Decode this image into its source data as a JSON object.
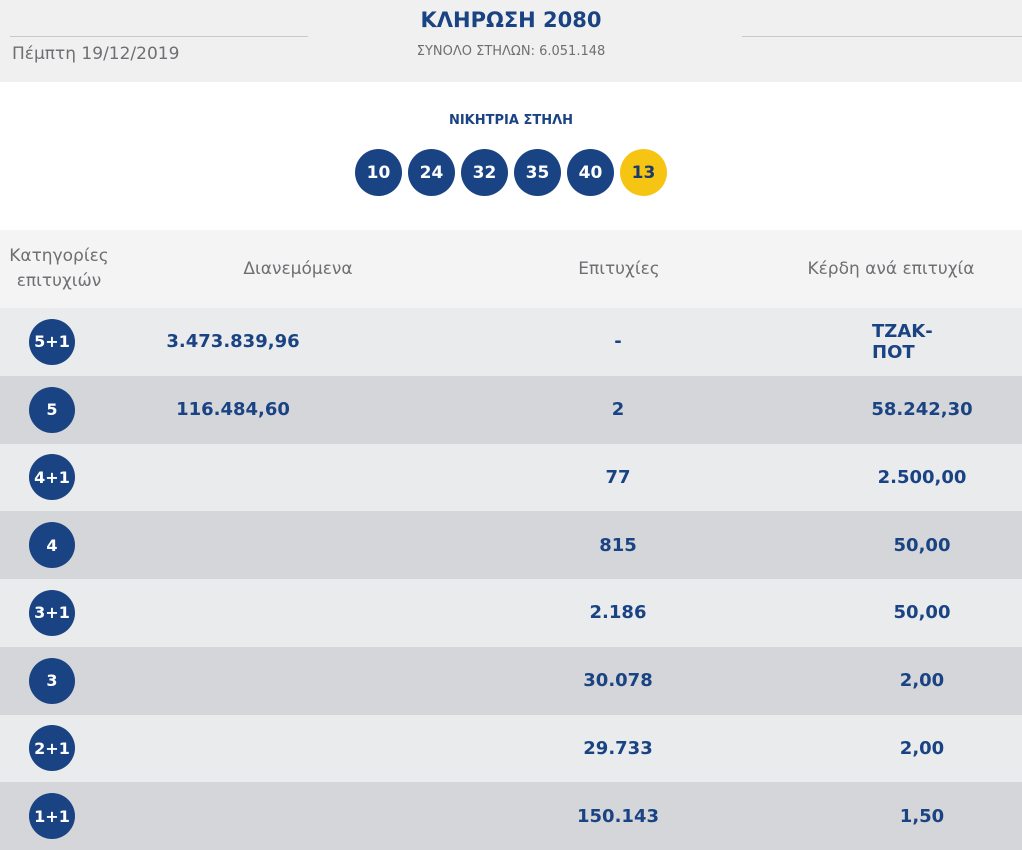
{
  "header": {
    "date": "Πέμπτη 19/12/2019",
    "draw_title": "ΚΛΗΡΩΣΗ 2080",
    "total_columns": "ΣΥΝΟΛΟ ΣΤΗΛΩΝ: 6.051.148"
  },
  "winning": {
    "label": "ΝΙΚΗΤΡΙΑ ΣΤΗΛΗ",
    "numbers": [
      "10",
      "24",
      "32",
      "35",
      "40"
    ],
    "bonus": "13"
  },
  "columns": {
    "category": "Κατηγορίες επιτυχιών",
    "distributed": "Διανεμόμενα",
    "winners": "Επιτυχίες",
    "prize": "Κέρδη ανά επιτυχία"
  },
  "rows": [
    {
      "category": "5+1",
      "distributed": "3.473.839,96",
      "winners": "-",
      "prize": "ΤΖΑΚ-ΠΟΤ"
    },
    {
      "category": "5",
      "distributed": "116.484,60",
      "winners": "2",
      "prize": "58.242,30"
    },
    {
      "category": "4+1",
      "distributed": "",
      "winners": "77",
      "prize": "2.500,00"
    },
    {
      "category": "4",
      "distributed": "",
      "winners": "815",
      "prize": "50,00"
    },
    {
      "category": "3+1",
      "distributed": "",
      "winners": "2.186",
      "prize": "50,00"
    },
    {
      "category": "3",
      "distributed": "",
      "winners": "30.078",
      "prize": "2,00"
    },
    {
      "category": "2+1",
      "distributed": "",
      "winners": "29.733",
      "prize": "2,00"
    },
    {
      "category": "1+1",
      "distributed": "",
      "winners": "150.143",
      "prize": "1,50"
    }
  ],
  "colors": {
    "primary_blue": "#1a4383",
    "bonus_yellow": "#f6c513",
    "row_light": "#eaebec",
    "row_dark": "#d5d6d9"
  }
}
